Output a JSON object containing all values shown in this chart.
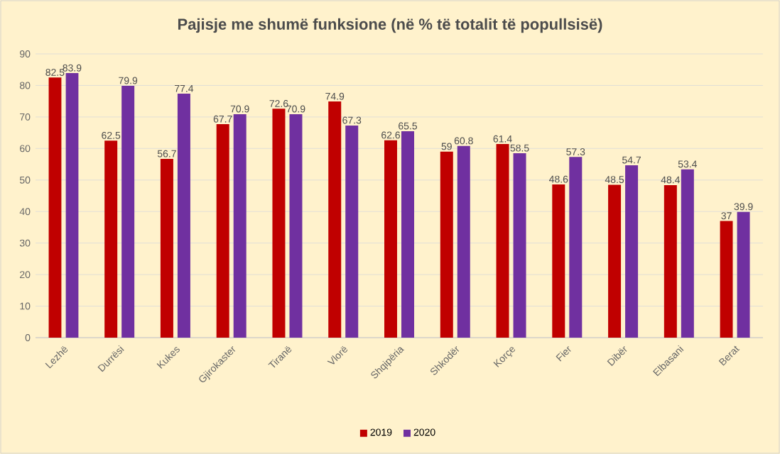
{
  "chart_data": {
    "type": "bar",
    "title": "Pajisje me shumë funksione (në % të totalit të popullsisë)",
    "categories": [
      "Lezhë",
      "Durrësi",
      "Kukes",
      "Gjirokaster",
      "Tiranë",
      "Vlorë",
      "Shqipëria",
      "Shkodër",
      "Korçe",
      "Fier",
      "Dibër",
      "Elbasani",
      "Berat"
    ],
    "series": [
      {
        "name": "2019",
        "color": "#c00000",
        "values": [
          82.5,
          62.5,
          56.7,
          67.7,
          72.6,
          74.9,
          62.6,
          59,
          61.4,
          48.6,
          48.5,
          48.4,
          37
        ]
      },
      {
        "name": "2020",
        "color": "#7030a0",
        "values": [
          83.9,
          79.9,
          77.4,
          70.9,
          70.9,
          67.3,
          65.5,
          60.8,
          58.5,
          57.3,
          54.7,
          53.4,
          39.9
        ]
      }
    ],
    "ylim": [
      0,
      90
    ],
    "yticks": [
      0,
      10,
      20,
      30,
      40,
      50,
      60,
      70,
      80,
      90
    ],
    "grid": "y",
    "legend": "bottom",
    "data_labels": true
  }
}
